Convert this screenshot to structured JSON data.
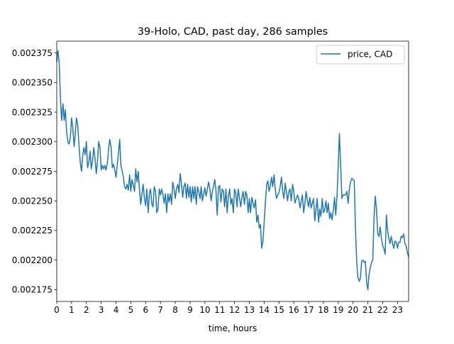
{
  "chart_data": {
    "type": "line",
    "title": "39-Holo, CAD, past day, 286 samples",
    "xlabel": "time, hours",
    "ylabel": "",
    "xlim": [
      0,
      23.75
    ],
    "ylim": [
      0.002165,
      0.002385
    ],
    "x_ticks": [
      0,
      1,
      2,
      3,
      4,
      5,
      6,
      7,
      8,
      9,
      10,
      11,
      12,
      13,
      14,
      15,
      16,
      17,
      18,
      19,
      20,
      21,
      22,
      23
    ],
    "x_tick_labels": [
      "0",
      "1",
      "2",
      "3",
      "4",
      "5",
      "6",
      "7",
      "8",
      "9",
      "10",
      "11",
      "12",
      "13",
      "14",
      "15",
      "16",
      "17",
      "18",
      "19",
      "20",
      "21",
      "22",
      "23"
    ],
    "y_ticks": [
      0.002175,
      0.0022,
      0.002225,
      0.00225,
      0.002275,
      0.0023,
      0.002325,
      0.00235,
      0.002375
    ],
    "y_tick_labels": [
      "0.002175",
      "0.002200",
      "0.002225",
      "0.002250",
      "0.002275",
      "0.002300",
      "0.002325",
      "0.002350",
      "0.002375"
    ],
    "grid": false,
    "legend_position": "top-right",
    "series": [
      {
        "name": "price, CAD",
        "color": "#1f77b4",
        "points": [
          [
            0.0,
            0.002368
          ],
          [
            0.08,
            0.002377
          ],
          [
            0.17,
            0.002366
          ],
          [
            0.25,
            0.002336
          ],
          [
            0.33,
            0.002318
          ],
          [
            0.42,
            0.002332
          ],
          [
            0.5,
            0.002318
          ],
          [
            0.58,
            0.002327
          ],
          [
            0.67,
            0.002308
          ],
          [
            0.75,
            0.0023
          ],
          [
            0.83,
            0.002298
          ],
          [
            0.92,
            0.002304
          ],
          [
            1.0,
            0.00232
          ],
          [
            1.08,
            0.002312
          ],
          [
            1.17,
            0.002296
          ],
          [
            1.25,
            0.002307
          ],
          [
            1.33,
            0.00232
          ],
          [
            1.42,
            0.002314
          ],
          [
            1.5,
            0.002297
          ],
          [
            1.58,
            0.002283
          ],
          [
            1.67,
            0.002275
          ],
          [
            1.75,
            0.002288
          ],
          [
            1.83,
            0.002295
          ],
          [
            1.92,
            0.002289
          ],
          [
            2.0,
            0.0023
          ],
          [
            2.08,
            0.002278
          ],
          [
            2.17,
            0.002283
          ],
          [
            2.25,
            0.002292
          ],
          [
            2.33,
            0.002277
          ],
          [
            2.42,
            0.002285
          ],
          [
            2.5,
            0.002295
          ],
          [
            2.58,
            0.002286
          ],
          [
            2.67,
            0.002273
          ],
          [
            2.75,
            0.002284
          ],
          [
            2.83,
            0.0023
          ],
          [
            2.92,
            0.002295
          ],
          [
            3.0,
            0.002276
          ],
          [
            3.08,
            0.00228
          ],
          [
            3.17,
            0.002277
          ],
          [
            3.25,
            0.00228
          ],
          [
            3.33,
            0.002276
          ],
          [
            3.42,
            0.002282
          ],
          [
            3.5,
            0.002294
          ],
          [
            3.58,
            0.002302
          ],
          [
            3.67,
            0.002295
          ],
          [
            3.75,
            0.002278
          ],
          [
            3.83,
            0.002281
          ],
          [
            3.92,
            0.002276
          ],
          [
            4.0,
            0.00227
          ],
          [
            4.08,
            0.00228
          ],
          [
            4.17,
            0.002291
          ],
          [
            4.25,
            0.002302
          ],
          [
            4.33,
            0.00228
          ],
          [
            4.42,
            0.002275
          ],
          [
            4.5,
            0.00227
          ],
          [
            4.58,
            0.002262
          ],
          [
            4.67,
            0.00226
          ],
          [
            4.75,
            0.002264
          ],
          [
            4.83,
            0.002259
          ],
          [
            4.92,
            0.002272
          ],
          [
            5.0,
            0.002258
          ],
          [
            5.08,
            0.002268
          ],
          [
            5.17,
            0.002263
          ],
          [
            5.25,
            0.002258
          ],
          [
            5.33,
            0.002277
          ],
          [
            5.42,
            0.002266
          ],
          [
            5.5,
            0.002275
          ],
          [
            5.58,
            0.00226
          ],
          [
            5.67,
            0.002247
          ],
          [
            5.75,
            0.002256
          ],
          [
            5.83,
            0.002264
          ],
          [
            5.92,
            0.002252
          ],
          [
            6.0,
            0.002246
          ],
          [
            6.08,
            0.00226
          ],
          [
            6.17,
            0.00224
          ],
          [
            6.25,
            0.002256
          ],
          [
            6.33,
            0.00226
          ],
          [
            6.42,
            0.002247
          ],
          [
            6.5,
            0.002245
          ],
          [
            6.58,
            0.002262
          ],
          [
            6.67,
            0.002258
          ],
          [
            6.75,
            0.00224
          ],
          [
            6.83,
            0.002243
          ],
          [
            6.92,
            0.00226
          ],
          [
            7.0,
            0.002255
          ],
          [
            7.08,
            0.00226
          ],
          [
            7.17,
            0.002255
          ],
          [
            7.25,
            0.002248
          ],
          [
            7.33,
            0.002256
          ],
          [
            7.42,
            0.00224
          ],
          [
            7.5,
            0.002256
          ],
          [
            7.58,
            0.002249
          ],
          [
            7.67,
            0.002256
          ],
          [
            7.75,
            0.002247
          ],
          [
            7.83,
            0.002266
          ],
          [
            7.92,
            0.00226
          ],
          [
            8.0,
            0.002252
          ],
          [
            8.08,
            0.00226
          ],
          [
            8.17,
            0.002264
          ],
          [
            8.25,
            0.002257
          ],
          [
            8.33,
            0.002273
          ],
          [
            8.42,
            0.002264
          ],
          [
            8.5,
            0.002253
          ],
          [
            8.58,
            0.002262
          ],
          [
            8.67,
            0.002265
          ],
          [
            8.75,
            0.002252
          ],
          [
            8.83,
            0.002264
          ],
          [
            8.92,
            0.002253
          ],
          [
            9.0,
            0.002262
          ],
          [
            9.08,
            0.002249
          ],
          [
            9.17,
            0.002262
          ],
          [
            9.25,
            0.002252
          ],
          [
            9.33,
            0.002262
          ],
          [
            9.42,
            0.002247
          ],
          [
            9.5,
            0.002262
          ],
          [
            9.58,
            0.002258
          ],
          [
            9.67,
            0.002252
          ],
          [
            9.75,
            0.002262
          ],
          [
            9.83,
            0.00225
          ],
          [
            9.92,
            0.002256
          ],
          [
            10.0,
            0.002261
          ],
          [
            10.08,
            0.002254
          ],
          [
            10.17,
            0.00226
          ],
          [
            10.25,
            0.002266
          ],
          [
            10.33,
            0.002261
          ],
          [
            10.42,
            0.00225
          ],
          [
            10.5,
            0.002258
          ],
          [
            10.58,
            0.002262
          ],
          [
            10.67,
            0.002268
          ],
          [
            10.75,
            0.002258
          ],
          [
            10.83,
            0.002238
          ],
          [
            10.92,
            0.002262
          ],
          [
            11.0,
            0.002263
          ],
          [
            11.08,
            0.002249
          ],
          [
            11.17,
            0.00226
          ],
          [
            11.25,
            0.002258
          ],
          [
            11.33,
            0.002245
          ],
          [
            11.42,
            0.00226
          ],
          [
            11.5,
            0.00224
          ],
          [
            11.58,
            0.002254
          ],
          [
            11.67,
            0.00226
          ],
          [
            11.75,
            0.002247
          ],
          [
            11.83,
            0.002252
          ],
          [
            11.92,
            0.00224
          ],
          [
            12.0,
            0.00226
          ],
          [
            12.08,
            0.002257
          ],
          [
            12.17,
            0.002245
          ],
          [
            12.25,
            0.00226
          ],
          [
            12.33,
            0.002253
          ],
          [
            12.42,
            0.002245
          ],
          [
            12.5,
            0.002253
          ],
          [
            12.58,
            0.002258
          ],
          [
            12.67,
            0.002247
          ],
          [
            12.75,
            0.002258
          ],
          [
            12.83,
            0.002255
          ],
          [
            12.92,
            0.00224
          ],
          [
            13.0,
            0.002252
          ],
          [
            13.08,
            0.00224
          ],
          [
            13.17,
            0.002253
          ],
          [
            13.25,
            0.002248
          ],
          [
            13.33,
            0.002244
          ],
          [
            13.42,
            0.002251
          ],
          [
            13.5,
            0.002232
          ],
          [
            13.58,
            0.002238
          ],
          [
            13.67,
            0.002227
          ],
          [
            13.75,
            0.00223
          ],
          [
            13.83,
            0.00221
          ],
          [
            13.92,
            0.002216
          ],
          [
            14.0,
            0.002232
          ],
          [
            14.08,
            0.002248
          ],
          [
            14.17,
            0.002264
          ],
          [
            14.25,
            0.002267
          ],
          [
            14.33,
            0.002258
          ],
          [
            14.42,
            0.002263
          ],
          [
            14.5,
            0.00227
          ],
          [
            14.58,
            0.002262
          ],
          [
            14.67,
            0.002272
          ],
          [
            14.75,
            0.00226
          ],
          [
            14.83,
            0.002252
          ],
          [
            14.92,
            0.002255
          ],
          [
            15.0,
            0.002257
          ],
          [
            15.08,
            0.002262
          ],
          [
            15.17,
            0.00227
          ],
          [
            15.25,
            0.002258
          ],
          [
            15.33,
            0.002252
          ],
          [
            15.42,
            0.002265
          ],
          [
            15.5,
            0.002258
          ],
          [
            15.58,
            0.00225
          ],
          [
            15.67,
            0.002258
          ],
          [
            15.75,
            0.00226
          ],
          [
            15.83,
            0.00225
          ],
          [
            15.92,
            0.002264
          ],
          [
            16.0,
            0.002258
          ],
          [
            16.08,
            0.002248
          ],
          [
            16.17,
            0.002252
          ],
          [
            16.25,
            0.002255
          ],
          [
            16.33,
            0.002252
          ],
          [
            16.42,
            0.002244
          ],
          [
            16.5,
            0.00225
          ],
          [
            16.58,
            0.002255
          ],
          [
            16.67,
            0.00224
          ],
          [
            16.75,
            0.002248
          ],
          [
            16.83,
            0.002258
          ],
          [
            16.92,
            0.00225
          ],
          [
            17.0,
            0.002245
          ],
          [
            17.08,
            0.002253
          ],
          [
            17.17,
            0.002244
          ],
          [
            17.25,
            0.002248
          ],
          [
            17.33,
            0.002252
          ],
          [
            17.42,
            0.002233
          ],
          [
            17.5,
            0.002243
          ],
          [
            17.58,
            0.002252
          ],
          [
            17.67,
            0.002232
          ],
          [
            17.75,
            0.002243
          ],
          [
            17.83,
            0.002237
          ],
          [
            17.92,
            0.002252
          ],
          [
            18.0,
            0.00224
          ],
          [
            18.08,
            0.002242
          ],
          [
            18.17,
            0.00225
          ],
          [
            18.25,
            0.00224
          ],
          [
            18.33,
            0.002248
          ],
          [
            18.42,
            0.002235
          ],
          [
            18.5,
            0.00224
          ],
          [
            18.58,
            0.002234
          ],
          [
            18.67,
            0.002242
          ],
          [
            18.75,
            0.002253
          ],
          [
            18.83,
            0.002238
          ],
          [
            18.92,
            0.002254
          ],
          [
            19.0,
            0.00228
          ],
          [
            19.08,
            0.002307
          ],
          [
            19.17,
            0.002278
          ],
          [
            19.25,
            0.002252
          ],
          [
            19.33,
            0.002255
          ],
          [
            19.42,
            0.002255
          ],
          [
            19.5,
            0.002255
          ],
          [
            19.58,
            0.002258
          ],
          [
            19.67,
            0.002248
          ],
          [
            19.75,
            0.00226
          ],
          [
            19.83,
            0.002266
          ],
          [
            19.92,
            0.002269
          ],
          [
            20.0,
            0.002268
          ],
          [
            20.08,
            0.002267
          ],
          [
            20.17,
            0.002224
          ],
          [
            20.25,
            0.002198
          ],
          [
            20.33,
            0.002185
          ],
          [
            20.42,
            0.002182
          ],
          [
            20.5,
            0.002185
          ],
          [
            20.58,
            0.002199
          ],
          [
            20.67,
            0.0022
          ],
          [
            20.75,
            0.002198
          ],
          [
            20.83,
            0.002199
          ],
          [
            20.92,
            0.002181
          ],
          [
            21.0,
            0.002175
          ],
          [
            21.08,
            0.002188
          ],
          [
            21.17,
            0.002194
          ],
          [
            21.25,
            0.002198
          ],
          [
            21.33,
            0.0022
          ],
          [
            21.42,
            0.002237
          ],
          [
            21.5,
            0.002254
          ],
          [
            21.58,
            0.002243
          ],
          [
            21.67,
            0.002222
          ],
          [
            21.75,
            0.00222
          ],
          [
            21.83,
            0.002228
          ],
          [
            21.92,
            0.002218
          ],
          [
            22.0,
            0.002212
          ],
          [
            22.08,
            0.00221
          ],
          [
            22.17,
            0.002205
          ],
          [
            22.25,
            0.002238
          ],
          [
            22.33,
            0.002225
          ],
          [
            22.42,
            0.002218
          ],
          [
            22.5,
            0.002214
          ],
          [
            22.58,
            0.00222
          ],
          [
            22.67,
            0.002214
          ],
          [
            22.75,
            0.00221
          ],
          [
            22.83,
            0.002216
          ],
          [
            22.92,
            0.002215
          ],
          [
            23.0,
            0.00221
          ],
          [
            23.08,
            0.002215
          ],
          [
            23.17,
            0.002215
          ],
          [
            23.25,
            0.00222
          ],
          [
            23.33,
            0.002219
          ],
          [
            23.42,
            0.002222
          ],
          [
            23.5,
            0.002214
          ],
          [
            23.58,
            0.002212
          ],
          [
            23.67,
            0.002206
          ],
          [
            23.75,
            0.002203
          ]
        ]
      }
    ]
  }
}
